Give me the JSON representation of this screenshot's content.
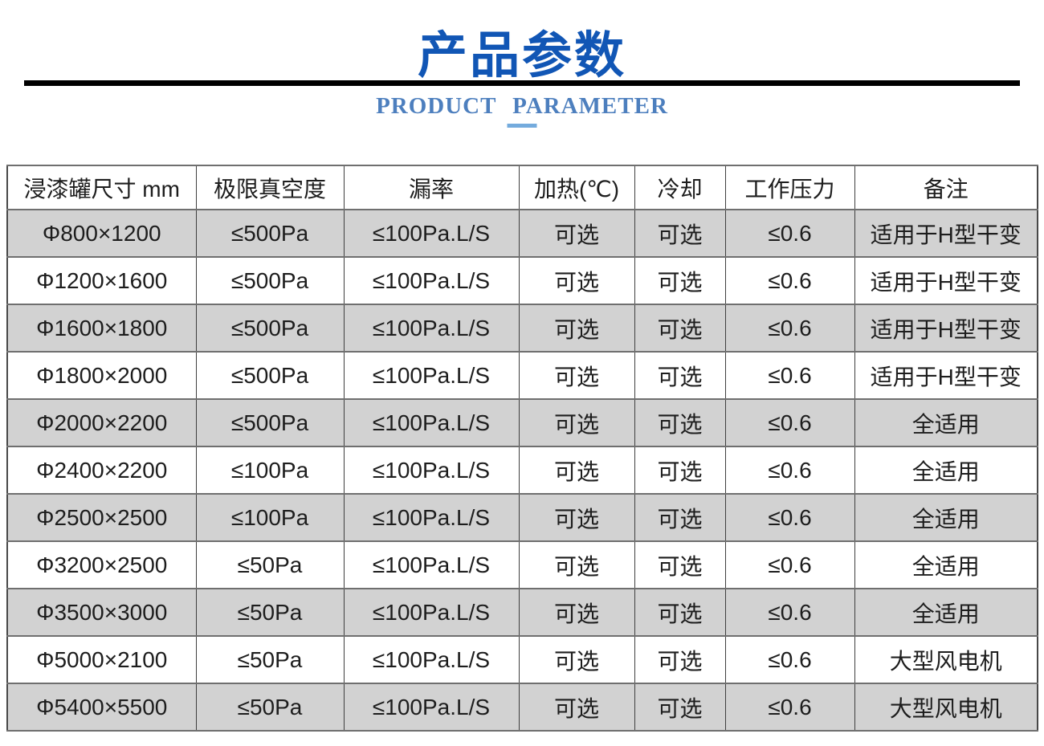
{
  "page": {
    "title": "产品参数",
    "subtitle": "PRODUCT PARAMETER"
  },
  "colors": {
    "title_blue": "#1156b5",
    "subtitle_blue": "#4d7fbe",
    "underline_accent": "#74abdd",
    "divider": "#000000",
    "alt_row_gray": "#d2d2d2",
    "grid_line": "#6f6f6f",
    "grid_line_dark": "#3f3f3f",
    "text": "#1d1d1d"
  },
  "table": {
    "columns": [
      "浸漆罐尺寸 mm",
      "极限真空度",
      "漏率",
      "加热(℃)",
      "冷却",
      "工作压力",
      "备注"
    ],
    "rows": [
      [
        "Φ800×1200",
        "≤500Pa",
        "≤100Pa.L/S",
        "可选",
        "可选",
        "≤0.6",
        "适用于H型干变"
      ],
      [
        "Φ1200×1600",
        "≤500Pa",
        "≤100Pa.L/S",
        "可选",
        "可选",
        "≤0.6",
        "适用于H型干变"
      ],
      [
        "Φ1600×1800",
        "≤500Pa",
        "≤100Pa.L/S",
        "可选",
        "可选",
        "≤0.6",
        "适用于H型干变"
      ],
      [
        "Φ1800×2000",
        "≤500Pa",
        "≤100Pa.L/S",
        "可选",
        "可选",
        "≤0.6",
        "适用于H型干变"
      ],
      [
        "Φ2000×2200",
        "≤500Pa",
        "≤100Pa.L/S",
        "可选",
        "可选",
        "≤0.6",
        "全适用"
      ],
      [
        "Φ2400×2200",
        "≤100Pa",
        "≤100Pa.L/S",
        "可选",
        "可选",
        "≤0.6",
        "全适用"
      ],
      [
        "Φ2500×2500",
        "≤100Pa",
        "≤100Pa.L/S",
        "可选",
        "可选",
        "≤0.6",
        "全适用"
      ],
      [
        "Φ3200×2500",
        "≤50Pa",
        "≤100Pa.L/S",
        "可选",
        "可选",
        "≤0.6",
        "全适用"
      ],
      [
        "Φ3500×3000",
        "≤50Pa",
        "≤100Pa.L/S",
        "可选",
        "可选",
        "≤0.6",
        "全适用"
      ],
      [
        "Φ5000×2100",
        "≤50Pa",
        "≤100Pa.L/S",
        "可选",
        "可选",
        "≤0.6",
        "大型风电机"
      ],
      [
        "Φ5400×5500",
        "≤50Pa",
        "≤100Pa.L/S",
        "可选",
        "可选",
        "≤0.6",
        "大型风电机"
      ]
    ]
  }
}
